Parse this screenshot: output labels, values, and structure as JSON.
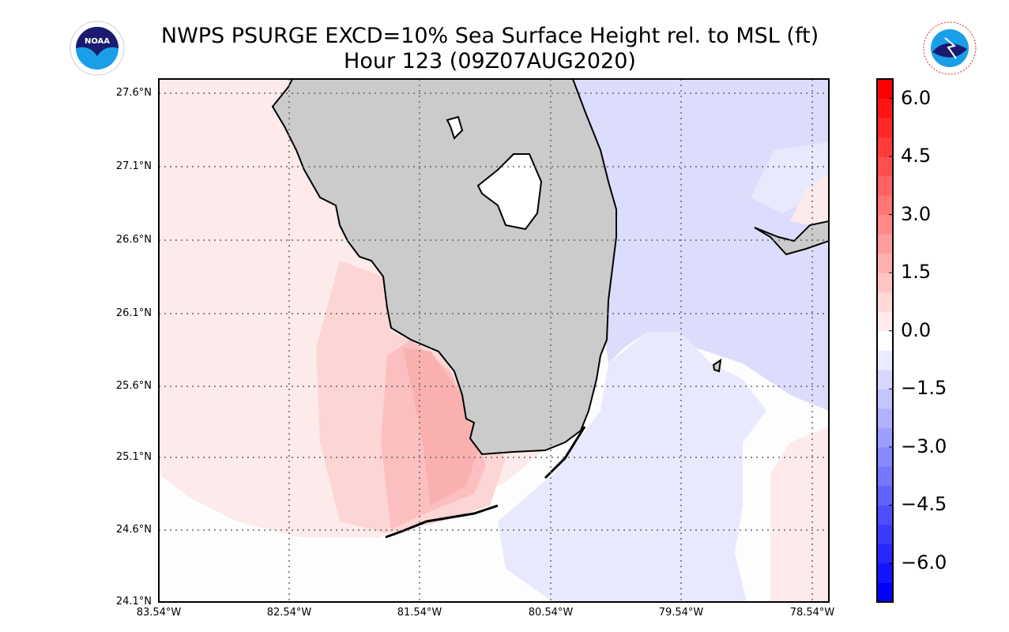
{
  "title": {
    "line1": "NWPS PSURGE EXCD=10% Sea Surface Height rel. to MSL (ft)",
    "line2": "Hour 123 (09Z07AUG2020)"
  },
  "logos": {
    "left": "NOAA",
    "right": "NATIONAL WEATHER SERVICE"
  },
  "map": {
    "lat_labels": [
      "27.6°N",
      "27.1°N",
      "26.6°N",
      "26.1°N",
      "25.6°N",
      "25.1°N",
      "24.6°N",
      "24.1°N"
    ],
    "lon_labels": [
      "83.54°W",
      "82.54°W",
      "81.54°W",
      "80.54°W",
      "79.54°W",
      "78.54°W"
    ],
    "extent": {
      "lon_min": -83.54,
      "lon_max": -78.41,
      "lat_min": 24.1,
      "lat_max": 27.7
    }
  },
  "colorbar": {
    "min": -7.0,
    "max": 6.5,
    "step": 0.5,
    "ticks": [
      "6.0",
      "4.5",
      "3.0",
      "1.5",
      "0.0",
      "−1.5",
      "−3.0",
      "−4.5",
      "−6.0"
    ],
    "tick_values": [
      6,
      4.5,
      3,
      1.5,
      0,
      -1.5,
      -3,
      -4.5,
      -6
    ],
    "low_color": "#0000ff",
    "mid_color": "#ffffff",
    "high_color": "#ff0000"
  }
}
